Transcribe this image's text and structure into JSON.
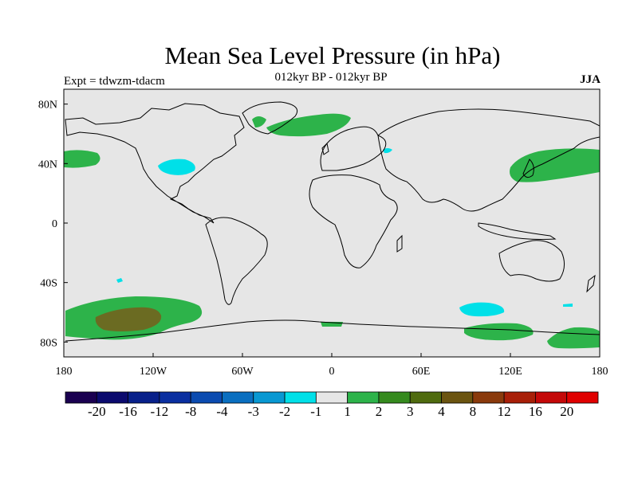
{
  "title": "Mean Sea Level Pressure (in hPa)",
  "subtitle": "012kyr BP - 012kyr BP",
  "experiment": "Expt = tdwzm-tdacm",
  "season": "JJA",
  "map": {
    "projection": "cylindrical equidistant",
    "lon_range": [
      -180,
      180
    ],
    "lat_range": [
      -90,
      90
    ],
    "lat_ticks": [
      "80N",
      "40N",
      "0",
      "40S",
      "80S"
    ],
    "lon_ticks": [
      "180",
      "120W",
      "60W",
      "0",
      "60E",
      "120E",
      "180"
    ],
    "background_color": "#e6e6e6"
  },
  "colorbar": {
    "labels": [
      "-20",
      "-16",
      "-12",
      "-8",
      "-4",
      "-3",
      "-2",
      "-1",
      "1",
      "2",
      "3",
      "4",
      "8",
      "12",
      "16",
      "20"
    ],
    "colors": [
      "#1a0050",
      "#0b0a6e",
      "#08208a",
      "#0a2fa0",
      "#0b4bb0",
      "#0a6fc0",
      "#0898d2",
      "#00e0e8",
      "#e6e6e6",
      "#2db34a",
      "#358a1e",
      "#4f6b0f",
      "#6b5410",
      "#8a3a0c",
      "#a81f08",
      "#c40808",
      "#e00000"
    ]
  },
  "chart_data": {
    "type": "map",
    "variable": "Mean Sea Level Pressure (in hPa)",
    "anomaly_regions": [
      {
        "region": "North Pacific (east of dateline)",
        "range": "1 to 2"
      },
      {
        "region": "North America interior",
        "range": "-2 to -1"
      },
      {
        "region": "North Atlantic / Greenland / Iceland",
        "range": "1 to 2"
      },
      {
        "region": "Caspian area",
        "range": "-2 to -1"
      },
      {
        "region": "Japan / NW Pacific",
        "range": "1 to 2"
      },
      {
        "region": "South Pacific mid-latitudes",
        "range": "1 to 3"
      },
      {
        "region": "South Pacific core",
        "range": "2 to 3"
      },
      {
        "region": "Southern Indian Ocean",
        "range": "-2 to -1"
      },
      {
        "region": "Southern Ocean south of Australia",
        "range": "1 to 2"
      },
      {
        "region": "Ross Sea / near dateline Antarctica",
        "range": "1 to 2"
      },
      {
        "region": "Weddell Sea coast",
        "range": "1 to 2"
      }
    ]
  }
}
